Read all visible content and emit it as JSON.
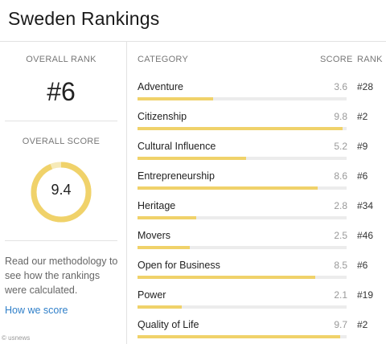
{
  "page_title": "Sweden Rankings",
  "overall_rank": {
    "label": "OVERALL RANK",
    "value": "#6"
  },
  "overall_score": {
    "label": "OVERALL SCORE",
    "value": "9.4",
    "max": 10,
    "accent": "#f0d26a",
    "track": "#f6eab8"
  },
  "methodology_text": "Read our methodology to see how the rankings were calculated.",
  "how_link": "How we score",
  "watermark": "© usnews",
  "table": {
    "headers": {
      "category": "CATEGORY",
      "score": "SCORE",
      "rank": "RANK"
    },
    "max_score": 10,
    "rows": [
      {
        "category": "Adventure",
        "score": "3.6",
        "rank": "#28"
      },
      {
        "category": "Citizenship",
        "score": "9.8",
        "rank": "#2"
      },
      {
        "category": "Cultural Influence",
        "score": "5.2",
        "rank": "#9"
      },
      {
        "category": "Entrepreneurship",
        "score": "8.6",
        "rank": "#6"
      },
      {
        "category": "Heritage",
        "score": "2.8",
        "rank": "#34"
      },
      {
        "category": "Movers",
        "score": "2.5",
        "rank": "#46"
      },
      {
        "category": "Open for Business",
        "score": "8.5",
        "rank": "#6"
      },
      {
        "category": "Power",
        "score": "2.1",
        "rank": "#19"
      },
      {
        "category": "Quality of Life",
        "score": "9.7",
        "rank": "#2"
      }
    ]
  }
}
